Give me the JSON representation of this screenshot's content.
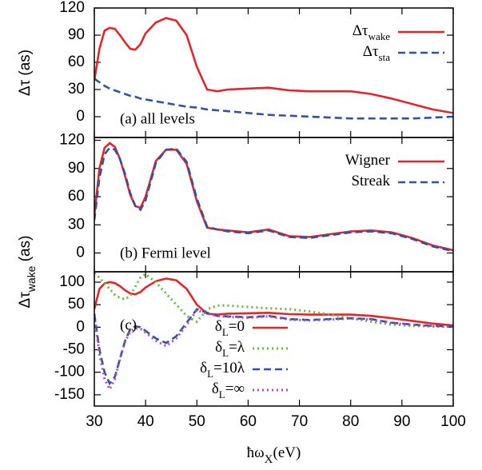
{
  "chart_data": [
    {
      "type": "line",
      "ylabel": "Δτ (as)",
      "annotation": "(a) all levels",
      "legend": "upper right",
      "xlim": [
        30,
        100
      ],
      "xticks": [
        30,
        40,
        50,
        60,
        70,
        80,
        90,
        100
      ],
      "ylim": [
        -23,
        120
      ],
      "yticks": [
        0,
        30,
        60,
        90,
        120
      ],
      "x": [
        30,
        31,
        32,
        33,
        34,
        35,
        36,
        37,
        38,
        39,
        40,
        42,
        44,
        46,
        48,
        50,
        52,
        54,
        56,
        60,
        64,
        68,
        72,
        76,
        80,
        84,
        88,
        92,
        96,
        100
      ],
      "series": [
        {
          "name": "Δτ",
          "name_sub": "wake",
          "color": "#e3262a",
          "dash": "solid",
          "values": [
            40,
            75,
            95,
            98,
            97,
            90,
            82,
            75,
            74,
            80,
            92,
            104,
            109,
            106,
            90,
            55,
            30,
            28,
            30,
            31,
            32,
            29,
            28,
            28,
            28,
            25,
            20,
            14,
            8,
            4
          ]
        },
        {
          "name": "Δτ",
          "name_sub": "sta",
          "color": "#2f52a4",
          "dash": "dashed",
          "values": [
            42,
            38,
            34,
            31,
            29,
            27,
            25,
            23,
            22,
            20,
            19,
            17,
            15,
            13,
            11,
            10,
            8,
            7,
            6,
            4,
            2,
            1,
            0,
            -1,
            -2,
            -2,
            -2,
            -2,
            -1,
            0
          ]
        }
      ]
    },
    {
      "type": "line",
      "ylabel": "Δτ",
      "ylabel_sub": "wake",
      "ylabel_post": " (as)",
      "annotation": "(b) Fermi level",
      "legend": "upper right",
      "xlim": [
        30,
        100
      ],
      "xticks": [
        30,
        40,
        50,
        60,
        70,
        80,
        90,
        100
      ],
      "ylim": [
        -20,
        123
      ],
      "yticks": [
        0,
        30,
        60,
        90,
        120
      ],
      "x": [
        30,
        31,
        32,
        33,
        34,
        35,
        36,
        37,
        38,
        39,
        40,
        42,
        44,
        46,
        48,
        50,
        52,
        54,
        56,
        60,
        64,
        68,
        72,
        76,
        80,
        84,
        88,
        92,
        96,
        100
      ],
      "series": [
        {
          "name": "Wigner",
          "color": "#e3262a",
          "dash": "solid",
          "values": [
            40,
            90,
            112,
            117,
            113,
            100,
            82,
            62,
            50,
            48,
            60,
            98,
            110,
            110,
            95,
            55,
            27,
            25,
            24,
            22,
            25,
            18,
            17,
            20,
            23,
            24,
            22,
            16,
            8,
            3
          ]
        },
        {
          "name": "Streak",
          "color": "#2f52a4",
          "dash": "dashed",
          "values": [
            35,
            80,
            105,
            112,
            110,
            100,
            84,
            64,
            50,
            46,
            56,
            96,
            110,
            111,
            97,
            58,
            28,
            25,
            23,
            21,
            24,
            17,
            16,
            19,
            22,
            23,
            21,
            15,
            7,
            2
          ]
        }
      ]
    },
    {
      "type": "line",
      "annotation": "(c)",
      "legend": "lower center",
      "xlabel": "ħω",
      "xlabel_sub": "X",
      "xlabel_post": "(eV)",
      "xlim": [
        30,
        100
      ],
      "xticks": [
        30,
        40,
        50,
        60,
        70,
        80,
        90,
        100
      ],
      "ylim": [
        -175,
        123
      ],
      "yticks": [
        -150,
        -100,
        -50,
        0,
        50,
        100
      ],
      "x": [
        30,
        31,
        32,
        33,
        34,
        35,
        36,
        37,
        38,
        39,
        40,
        42,
        44,
        46,
        48,
        50,
        52,
        54,
        56,
        60,
        64,
        68,
        72,
        76,
        80,
        84,
        88,
        92,
        96,
        100
      ],
      "series": [
        {
          "name": "δ",
          "name_sub": "L",
          "name_post": "=0",
          "color": "#e3262a",
          "dash": "solid",
          "values": [
            40,
            85,
            97,
            100,
            98,
            91,
            82,
            75,
            73,
            78,
            88,
            102,
            108,
            104,
            85,
            50,
            30,
            28,
            30,
            31,
            32,
            29,
            28,
            28,
            28,
            25,
            20,
            14,
            8,
            4
          ]
        },
        {
          "name": "δ",
          "name_sub": "L",
          "name_post": "=λ",
          "color": "#5cbf3a",
          "dash": "dotted",
          "values": [
            120,
            110,
            97,
            85,
            72,
            65,
            62,
            70,
            90,
            110,
            118,
            100,
            75,
            50,
            25,
            12,
            40,
            48,
            48,
            45,
            42,
            40,
            35,
            28,
            20,
            12,
            6,
            3,
            2,
            1
          ]
        },
        {
          "name": "δ",
          "name_sub": "L",
          "name_post": "=10λ",
          "color": "#2f52a4",
          "dash": "dashed",
          "values": [
            30,
            -50,
            -100,
            -125,
            -110,
            -70,
            -30,
            -5,
            2,
            0,
            -8,
            -25,
            -35,
            -20,
            10,
            40,
            32,
            25,
            24,
            22,
            25,
            18,
            16,
            18,
            20,
            18,
            10,
            6,
            3,
            2
          ]
        },
        {
          "name": "δ",
          "name_sub": "L",
          "name_post": "=∞",
          "color": "#b04db3",
          "dash": "dotted",
          "values": [
            25,
            -60,
            -115,
            -138,
            -115,
            -70,
            -32,
            -10,
            -2,
            -3,
            -12,
            -30,
            -42,
            -25,
            5,
            38,
            30,
            25,
            23,
            21,
            24,
            17,
            15,
            17,
            19,
            17,
            9,
            5,
            2,
            1
          ]
        }
      ]
    }
  ]
}
